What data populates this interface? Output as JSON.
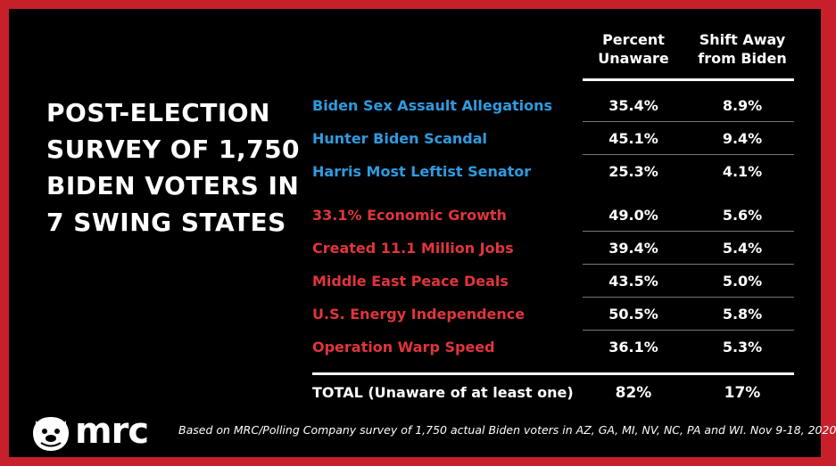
{
  "title": "POST-ELECTION SURVEY OF 1,750 BIDEN VOTERS IN 7 SWING STATES",
  "colors": {
    "frame": "#c8202a",
    "background": "#000000",
    "blue_items": "#2f9be0",
    "red_items": "#e0353c"
  },
  "chart_data": {
    "type": "table",
    "columns": [
      "Percent Unaware",
      "Shift Away from Biden"
    ],
    "rows": [
      {
        "label": "Biden Sex Assault Allegations",
        "group": "blue",
        "percent_unaware": "35.4%",
        "shift": "8.9%"
      },
      {
        "label": "Hunter Biden Scandal",
        "group": "blue",
        "percent_unaware": "45.1%",
        "shift": "9.4%"
      },
      {
        "label": "Harris Most Leftist Senator",
        "group": "blue",
        "percent_unaware": "25.3%",
        "shift": "4.1%"
      },
      {
        "label": "33.1% Economic Growth",
        "group": "red",
        "percent_unaware": "49.0%",
        "shift": "5.6%"
      },
      {
        "label": "Created 11.1 Million Jobs",
        "group": "red",
        "percent_unaware": "39.4%",
        "shift": "5.4%"
      },
      {
        "label": "Middle East Peace Deals",
        "group": "red",
        "percent_unaware": "43.5%",
        "shift": "5.0%"
      },
      {
        "label": "U.S. Energy Independence",
        "group": "red",
        "percent_unaware": "50.5%",
        "shift": "5.8%"
      },
      {
        "label": "Operation Warp Speed",
        "group": "red",
        "percent_unaware": "36.1%",
        "shift": "5.3%"
      }
    ],
    "total": {
      "label_bold": "TOTAL",
      "label_rest": " (Unaware of at least one)",
      "percent_unaware": "82%",
      "shift": "17%"
    }
  },
  "footer": {
    "logo": "mrc",
    "logo_icon": "bulldog-icon",
    "source": "Based on MRC/Polling Company survey of 1,750 actual Biden voters in AZ, GA, MI, NV, NC, PA and WI. Nov 9-18, 2020"
  }
}
